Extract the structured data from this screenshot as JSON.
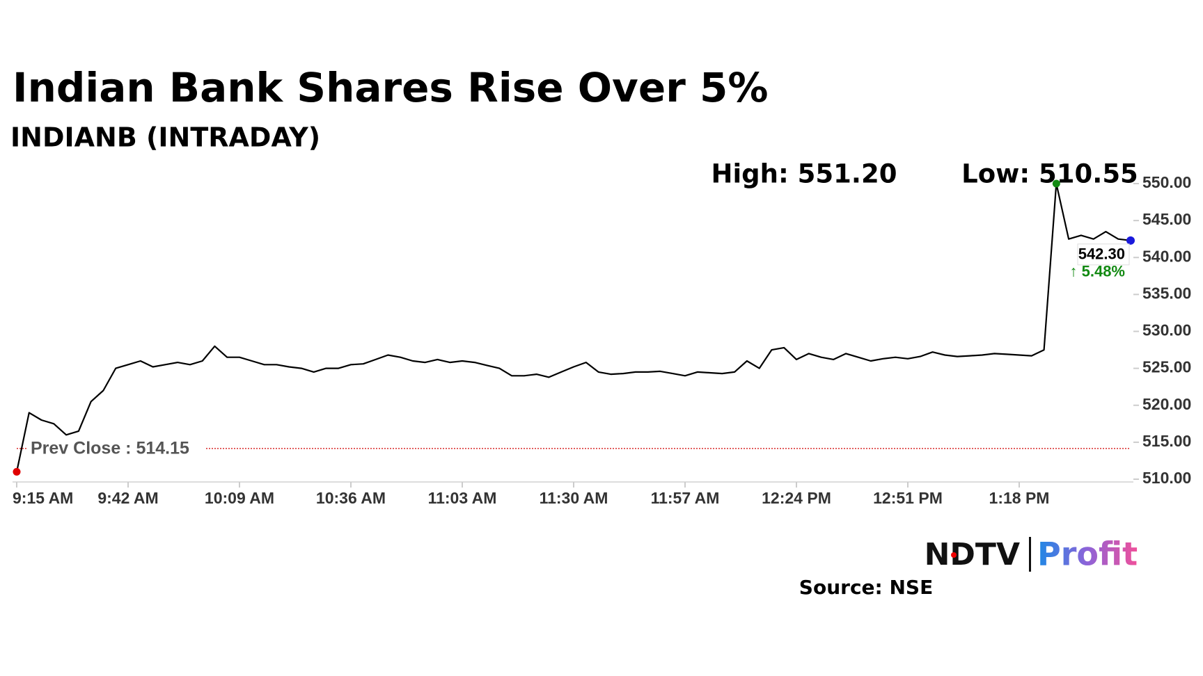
{
  "chart_data": {
    "type": "line",
    "title": "Indian Bank Shares Rise Over 5%",
    "subtitle": "INDIANB (INTRADAY)",
    "high_label": "High: 551.20",
    "low_label": "Low: 510.55",
    "last_label": "542.30",
    "change_label": "↑ 5.48%",
    "prev_close": 514.15,
    "prev_close_label": "Prev Close : 514.15",
    "prev_close_color": "#d00000",
    "categories": [
      "9:15 AM",
      null,
      null,
      null,
      null,
      null,
      null,
      null,
      null,
      "9:42 AM",
      null,
      null,
      null,
      null,
      null,
      null,
      null,
      null,
      "10:09 AM",
      null,
      null,
      null,
      null,
      null,
      null,
      null,
      null,
      "10:36 AM",
      null,
      null,
      null,
      null,
      null,
      null,
      null,
      null,
      "11:03 AM",
      null,
      null,
      null,
      null,
      null,
      null,
      null,
      null,
      "11:30 AM",
      null,
      null,
      null,
      null,
      null,
      null,
      null,
      null,
      "11:57 AM",
      null,
      null,
      null,
      null,
      null,
      null,
      null,
      null,
      "12:24 PM",
      null,
      null,
      null,
      null,
      null,
      null,
      null,
      null,
      "12:51 PM",
      null,
      null,
      null,
      null,
      null,
      null,
      null,
      null,
      "1:18 PM",
      null,
      null,
      null,
      null,
      null,
      null,
      null,
      null,
      null
    ],
    "series": [
      {
        "color": "#000000",
        "values": [
          511,
          519,
          518,
          517.5,
          516,
          516.5,
          520.5,
          522,
          525,
          525.5,
          526,
          525.2,
          525.5,
          525.8,
          525.5,
          526,
          528,
          526.5,
          526.5,
          526,
          525.5,
          525.5,
          525.2,
          525,
          524.5,
          525,
          525,
          525.5,
          525.6,
          526.2,
          526.8,
          526.5,
          526,
          525.8,
          526.2,
          525.8,
          526,
          525.8,
          525.4,
          525,
          524,
          524,
          524.2,
          523.8,
          524.5,
          525.2,
          525.8,
          524.5,
          524.2,
          524.3,
          524.5,
          524.5,
          524.6,
          524.3,
          524,
          524.5,
          524.4,
          524.3,
          524.5,
          526,
          525,
          527.5,
          527.8,
          526.2,
          527,
          526.5,
          526.2,
          527,
          526.5,
          526,
          526.3,
          526.5,
          526.3,
          526.6,
          527.2,
          526.8,
          526.6,
          526.7,
          526.8,
          527,
          526.9,
          526.8,
          526.7,
          527.5,
          550,
          542.5,
          543,
          542.5,
          543.5,
          542.5,
          542.3
        ]
      }
    ],
    "ylim": [
      510,
      550
    ],
    "yticks": [
      {
        "value": 510,
        "label": "510.00"
      },
      {
        "value": 515,
        "label": "515.00"
      },
      {
        "value": 520,
        "label": "520.00"
      },
      {
        "value": 525,
        "label": "525.00"
      },
      {
        "value": 530,
        "label": "530.00"
      },
      {
        "value": 535,
        "label": "535.00"
      },
      {
        "value": 540,
        "label": "540.00"
      },
      {
        "value": 545,
        "label": "545.00"
      },
      {
        "value": 550,
        "label": "550.00"
      }
    ],
    "grid": false,
    "source": "Source: NSE",
    "logo_brand": "NDTV",
    "logo_product": "Profit"
  }
}
